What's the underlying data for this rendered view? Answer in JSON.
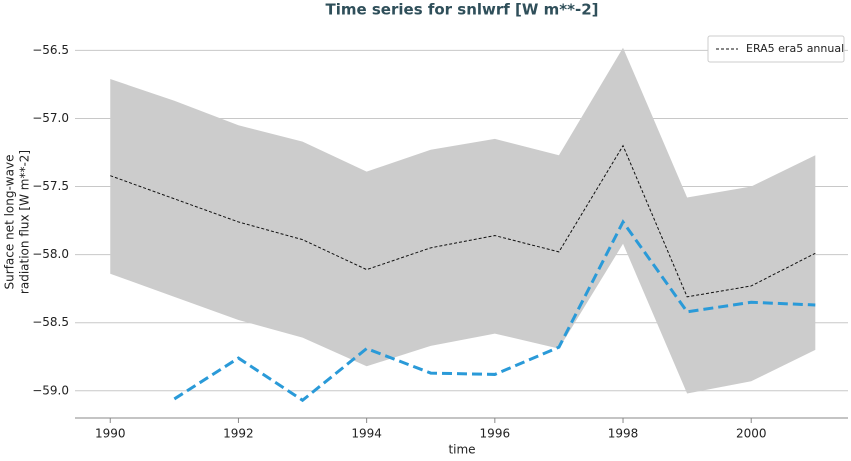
{
  "chart_data": {
    "type": "line",
    "title": "Time series for snlwrf [W m**-2]",
    "xlabel": "time",
    "ylabel": [
      "Surface net long-wave",
      "radiation flux [W m**-2]"
    ],
    "x": [
      1990,
      1991,
      1992,
      1993,
      1994,
      1995,
      1996,
      1997,
      1998,
      1999,
      2000,
      2001
    ],
    "band": {
      "color": "#cccccc",
      "upper": [
        -56.71,
        -56.87,
        -57.05,
        -57.17,
        -57.39,
        -57.23,
        -57.15,
        -57.27,
        -56.48,
        -57.58,
        -57.5,
        -57.27
      ],
      "lower": [
        -58.14,
        -58.31,
        -58.48,
        -58.61,
        -58.82,
        -58.67,
        -58.58,
        -58.69,
        -57.92,
        -59.02,
        -58.93,
        -58.7
      ]
    },
    "series": [
      {
        "name": "ERA5 era5 annual",
        "color": "#111111",
        "values": [
          -57.42,
          -57.59,
          -57.76,
          -57.89,
          -58.11,
          -57.95,
          -57.86,
          -57.98,
          -57.2,
          -58.31,
          -58.23,
          -57.99
        ]
      },
      {
        "color": "#2a9ad8",
        "values": [
          null,
          -59.06,
          -58.76,
          -59.07,
          -58.69,
          -58.87,
          -58.88,
          -58.68,
          -57.76,
          -58.42,
          -58.35,
          -58.37
        ]
      }
    ],
    "xlim": [
      1989.45,
      2001.51
    ],
    "ylim": [
      -59.2,
      -56.35
    ],
    "xticks": [
      1990,
      1992,
      1994,
      1996,
      1998,
      2000
    ],
    "yticks": [
      {
        "value": -59.0,
        "label": "−59.0"
      },
      {
        "value": -58.5,
        "label": "−58.5"
      },
      {
        "value": -58.0,
        "label": "−58.0"
      },
      {
        "value": -57.5,
        "label": "−57.5"
      },
      {
        "value": -57.0,
        "label": "−57.0"
      },
      {
        "value": -56.5,
        "label": "−56.5"
      }
    ],
    "grid": true,
    "legend": "upper right"
  }
}
